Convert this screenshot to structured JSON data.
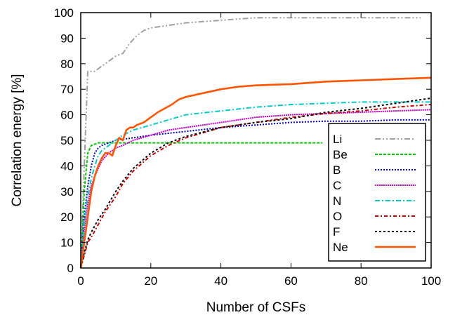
{
  "chart_data": {
    "type": "line",
    "title": "",
    "xlabel": "Number of CSFs",
    "ylabel": "Correlation energy [%]",
    "xlim": [
      0,
      100
    ],
    "ylim": [
      0,
      100
    ],
    "xticks": [
      0,
      20,
      40,
      60,
      80,
      100
    ],
    "yticks": [
      0,
      10,
      20,
      30,
      40,
      50,
      60,
      70,
      80,
      90,
      100
    ],
    "grid": false,
    "legend_position": "bottom-right",
    "series": [
      {
        "name": "Li",
        "color": "#a0a0a0",
        "dash": "8,3,2,3,2,3",
        "x": [
          0,
          1,
          2,
          3,
          4,
          5,
          6,
          8,
          10,
          12,
          14,
          16,
          18,
          20,
          25,
          30,
          40,
          50,
          60,
          70,
          80,
          90,
          97
        ],
        "y": [
          0,
          40,
          77,
          77,
          77,
          78,
          79,
          81,
          83,
          84,
          88,
          91,
          93,
          94,
          95,
          96,
          97,
          98,
          98,
          98,
          98,
          98,
          98
        ]
      },
      {
        "name": "Be",
        "color": "#00cc00",
        "dash": "4,2",
        "x": [
          0,
          1,
          2,
          3,
          4,
          5,
          10,
          20,
          30,
          40,
          50,
          60,
          69
        ],
        "y": [
          0,
          30,
          45,
          48,
          48.5,
          49,
          49,
          49,
          49,
          49,
          49,
          49,
          49
        ]
      },
      {
        "name": "B",
        "color": "#0000cc",
        "dash": "2,2",
        "x": [
          0,
          1,
          2,
          3,
          4,
          5,
          6,
          8,
          10,
          15,
          20,
          30,
          40,
          50,
          60,
          70,
          80,
          90,
          100
        ],
        "y": [
          0,
          20,
          32,
          40,
          45,
          47,
          48,
          49,
          50,
          51,
          52,
          53.5,
          55,
          56,
          57,
          57.5,
          57.5,
          58,
          58
        ]
      },
      {
        "name": "C",
        "color": "#cc00cc",
        "dash": "2,1",
        "x": [
          0,
          1,
          2,
          3,
          4,
          5,
          6,
          8,
          10,
          12,
          15,
          20,
          25,
          30,
          40,
          50,
          60,
          70,
          80,
          90,
          100
        ],
        "y": [
          0,
          15,
          25,
          32,
          36,
          39,
          42,
          45,
          47,
          48,
          50,
          52,
          54,
          55,
          57,
          59,
          60,
          60.5,
          61,
          61.5,
          62
        ]
      },
      {
        "name": "N",
        "color": "#00cccc",
        "dash": "7,3,2,3",
        "x": [
          0,
          1,
          2,
          3,
          4,
          5,
          6,
          8,
          10,
          12,
          15,
          20,
          25,
          30,
          40,
          50,
          60,
          70,
          80,
          90,
          100
        ],
        "y": [
          0,
          18,
          28,
          35,
          40,
          44,
          46,
          48,
          50,
          52,
          54,
          56,
          58,
          60,
          61.5,
          63,
          64,
          64.5,
          65,
          65,
          65
        ]
      },
      {
        "name": "O",
        "color": "#cc0000",
        "dash": "5,3,2,3",
        "x": [
          0,
          1,
          2,
          3,
          5,
          7,
          10,
          12,
          15,
          20,
          25,
          30,
          40,
          50,
          60,
          70,
          80,
          90,
          100
        ],
        "y": [
          0,
          5,
          10,
          12,
          17,
          22,
          28,
          33,
          38,
          44,
          48,
          51,
          55,
          57,
          59,
          60.5,
          61.5,
          63,
          64
        ]
      },
      {
        "name": "F",
        "color": "#000000",
        "dash": "3,3",
        "x": [
          0,
          1,
          2,
          3,
          5,
          7,
          10,
          12,
          15,
          20,
          25,
          30,
          40,
          50,
          60,
          70,
          80,
          90,
          100
        ],
        "y": [
          0,
          6,
          11,
          14,
          19,
          23,
          30,
          34,
          39,
          45,
          49,
          51.5,
          55,
          57,
          58.5,
          61,
          62.5,
          64.5,
          66.5
        ]
      },
      {
        "name": "Ne",
        "color": "#ff5500",
        "dash": "",
        "x": [
          0,
          1,
          2,
          3,
          4,
          5,
          6,
          7,
          8,
          9,
          10,
          11,
          12,
          13,
          14,
          15,
          16,
          18,
          20,
          22,
          24,
          26,
          28,
          30,
          35,
          40,
          45,
          50,
          60,
          70,
          80,
          90,
          100
        ],
        "y": [
          0,
          10,
          20,
          30,
          36,
          40,
          43,
          45,
          45,
          44,
          48,
          51,
          50,
          54,
          55,
          55,
          56,
          57,
          59,
          61,
          62.5,
          64,
          66,
          67,
          68.5,
          70,
          71,
          71.5,
          72,
          73,
          73.5,
          74,
          74.5
        ]
      }
    ]
  }
}
